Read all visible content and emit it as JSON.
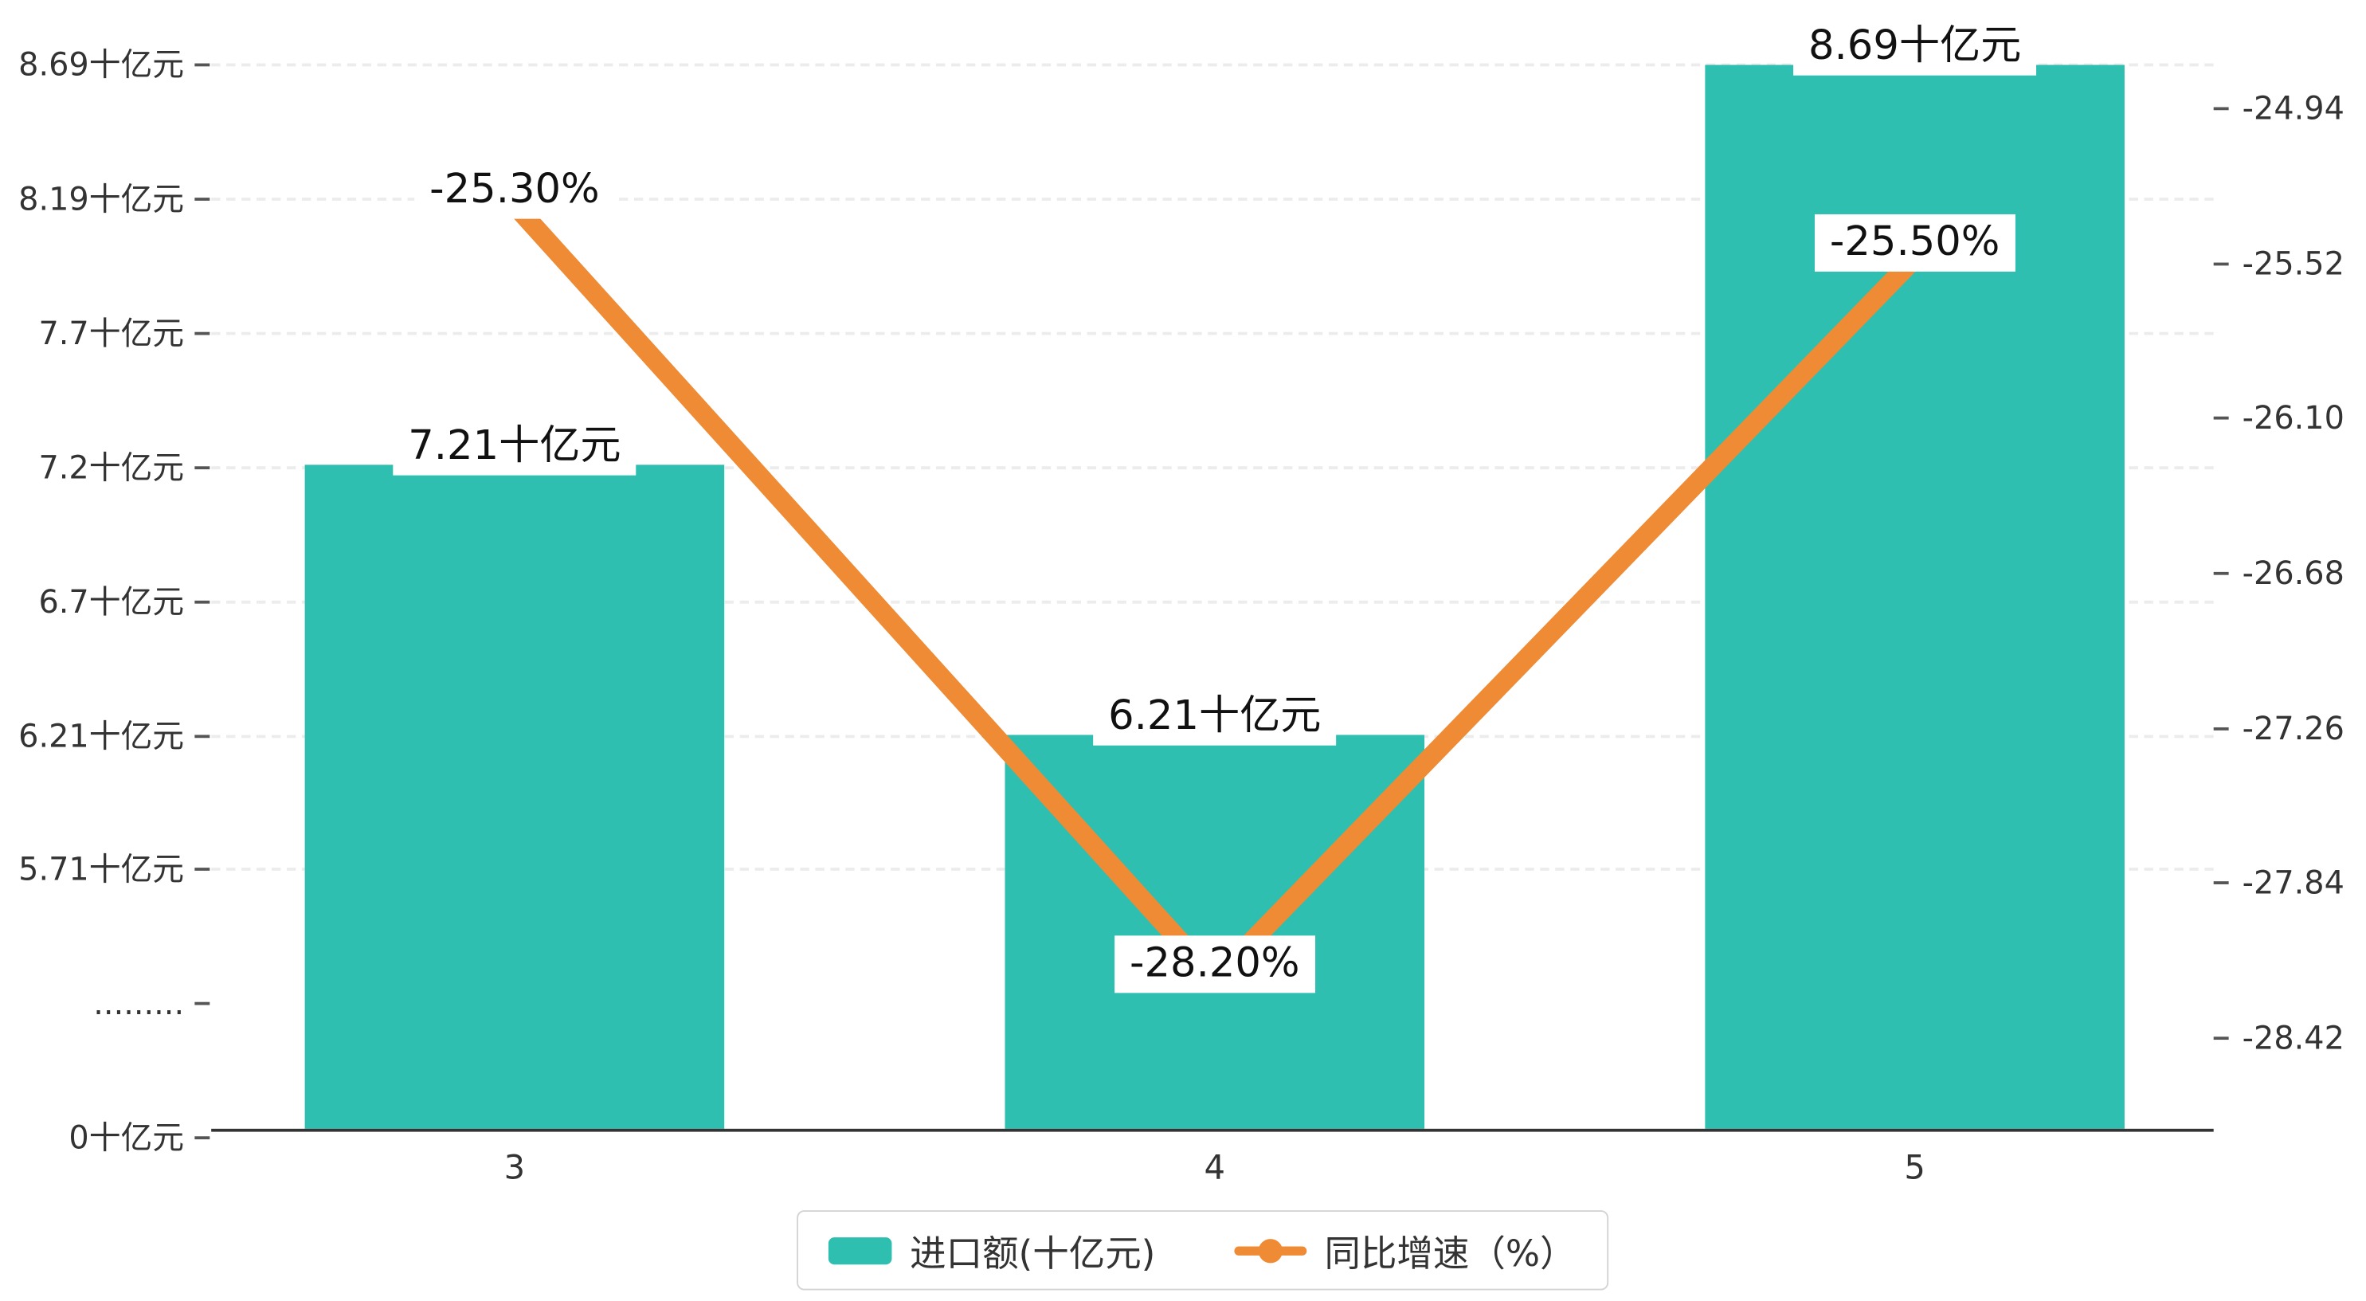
{
  "chart_data": {
    "type": "combo-bar-line",
    "categories": [
      "3",
      "4",
      "5"
    ],
    "series": [
      {
        "name": "进口额(十亿元)",
        "type": "bar",
        "values": [
          7.21,
          6.21,
          8.69
        ],
        "labels": [
          "7.21十亿元",
          "6.21十亿元",
          "8.69十亿元"
        ],
        "color": "#2fbfb1"
      },
      {
        "name": "同比增速（%）",
        "type": "line",
        "values": [
          -25.3,
          -28.2,
          -25.5
        ],
        "labels": [
          "-25.30%",
          "-28.20%",
          "-25.50%"
        ],
        "color": "#ee8b34"
      }
    ],
    "left_axis": {
      "tick_labels": [
        "8.69十亿元",
        "8.19十亿元",
        "7.7十亿元",
        "7.2十亿元",
        "6.7十亿元",
        "6.21十亿元",
        "5.71十亿元",
        ".........",
        "0十亿元"
      ],
      "tick_values": [
        8.69,
        8.19,
        7.7,
        7.2,
        6.7,
        6.21,
        5.71,
        null,
        0
      ],
      "axis_break": true,
      "top_value": 8.69
    },
    "right_axis": {
      "tick_labels": [
        "-24.94",
        "-25.52",
        "-26.10",
        "-26.68",
        "-27.26",
        "-27.84",
        "-28.42"
      ],
      "max": -24.94,
      "min": -28.42
    },
    "x_axis": {
      "labels": [
        "3",
        "4",
        "5"
      ]
    },
    "legend": [
      {
        "label": "进口额(十亿元)",
        "type": "bar",
        "color": "#2fbfb1"
      },
      {
        "label": "同比增速（%）",
        "type": "line",
        "color": "#ee8b34"
      }
    ],
    "grid": "dashed-horizontal",
    "legend_position": "bottom-center"
  }
}
